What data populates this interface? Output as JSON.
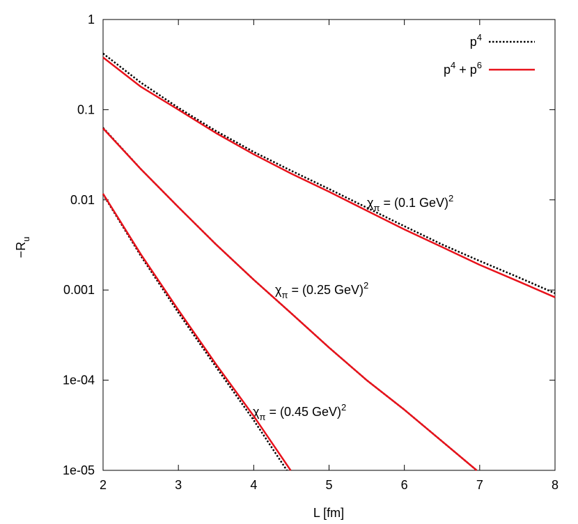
{
  "chart_data": {
    "type": "line",
    "xlabel": "L [fm]",
    "ylabel": "−R_u",
    "xlim": [
      2,
      8
    ],
    "ylim": [
      1e-05,
      1
    ],
    "ylog": true,
    "xticks": [
      2,
      3,
      4,
      5,
      6,
      7,
      8
    ],
    "yticks": [
      1,
      0.1,
      0.01,
      0.001,
      {
        "value": 0.0001,
        "label": "1e-04"
      },
      {
        "value": 1e-05,
        "label": "1e-05"
      }
    ],
    "legend": "upper right",
    "annotations": [
      "χ_π = (0.1 GeV)^2",
      "χ_π = (0.25 GeV)^2",
      "χ_π = (0.45 GeV)^2"
    ],
    "series": [
      {
        "name": "p^4",
        "color": "#000000",
        "style": "dotted",
        "x": [
          2,
          2.5,
          3,
          3.5,
          4,
          4.5,
          5,
          5.5,
          6,
          6.5,
          7,
          7.5,
          8
        ],
        "values": [
          0.42,
          0.2,
          0.105,
          0.058,
          0.034,
          0.021,
          0.0132,
          0.0082,
          0.0051,
          0.0032,
          0.0021,
          0.0014,
          0.00092
        ]
      },
      {
        "name": "p^4 + p^6",
        "color": "#e8121b",
        "style": "solid",
        "x": [
          2,
          2.5,
          3,
          3.5,
          4,
          4.5,
          5,
          5.5,
          6,
          6.5,
          7,
          7.5,
          8
        ],
        "values": [
          0.38,
          0.18,
          0.1,
          0.055,
          0.032,
          0.0195,
          0.0123,
          0.0076,
          0.0047,
          0.003,
          0.0019,
          0.00126,
          0.00083
        ]
      },
      {
        "color": "#000000",
        "style": "dotted",
        "x": [
          2,
          2.5,
          3,
          3.5,
          4,
          4.5,
          5,
          5.5,
          6,
          6.5,
          6.96
        ],
        "values": [
          0.063,
          0.022,
          0.0083,
          0.0032,
          0.0013,
          0.00055,
          0.00023,
          0.0001,
          4.7e-05,
          2.1e-05,
          1e-05
        ]
      },
      {
        "color": "#e8121b",
        "style": "solid",
        "x": [
          2,
          2.5,
          3,
          3.5,
          4,
          4.5,
          5,
          5.5,
          6,
          6.5,
          6.96
        ],
        "values": [
          0.062,
          0.022,
          0.0083,
          0.0032,
          0.0013,
          0.00055,
          0.00023,
          0.0001,
          4.7e-05,
          2.1e-05,
          1e-05
        ]
      },
      {
        "color": "#000000",
        "style": "dotted",
        "x": [
          2,
          2.5,
          3,
          3.5,
          4,
          4.44
        ],
        "values": [
          0.0115,
          0.0024,
          0.00056,
          0.00014,
          3.6e-05,
          1e-05
        ]
      },
      {
        "color": "#e8121b",
        "style": "solid",
        "x": [
          2,
          2.5,
          3,
          3.5,
          4,
          4.49
        ],
        "values": [
          0.0117,
          0.0025,
          0.0006,
          0.00015,
          4e-05,
          1e-05
        ]
      }
    ]
  }
}
